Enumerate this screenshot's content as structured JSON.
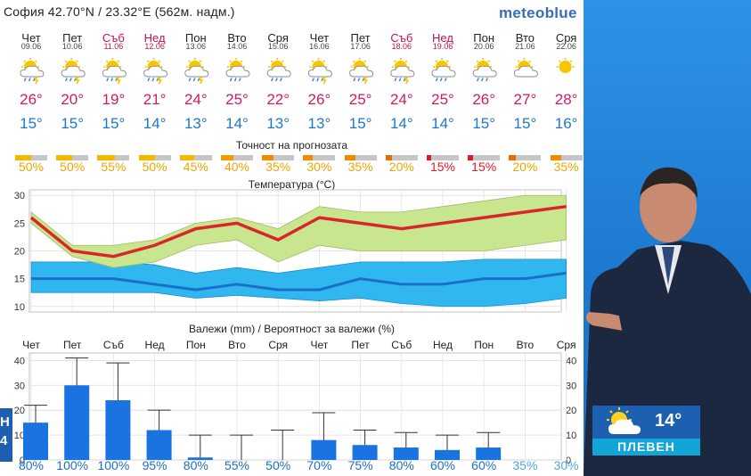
{
  "header": {
    "location": "София  42.70°N / 23.32°E (562м. надм.)",
    "brand": "meteoblue"
  },
  "days": [
    {
      "name": "Чет",
      "date": "09.06",
      "weekend": false,
      "icon": "sun-cloud-rain-storm-icon",
      "tmax": "26°",
      "tmin": "15°",
      "acc": "50%",
      "acc_color": "#f5b800",
      "precip_label": "Чет",
      "precip_prob": "80%"
    },
    {
      "name": "Пет",
      "date": "10.06",
      "weekend": false,
      "icon": "sun-cloud-rain-storm-icon",
      "tmax": "20°",
      "tmin": "15°",
      "acc": "50%",
      "acc_color": "#f5b800",
      "precip_label": "Пет",
      "precip_prob": "100%"
    },
    {
      "name": "Съб",
      "date": "11.06",
      "weekend": true,
      "icon": "sun-cloud-rain-storm-icon",
      "tmax": "19°",
      "tmin": "15°",
      "acc": "55%",
      "acc_color": "#f5b800",
      "precip_label": "Съб",
      "precip_prob": "100%"
    },
    {
      "name": "Нед",
      "date": "12.06",
      "weekend": true,
      "icon": "sun-cloud-rain-storm-icon",
      "tmax": "21°",
      "tmin": "14°",
      "acc": "50%",
      "acc_color": "#f5b800",
      "precip_label": "Нед",
      "precip_prob": "95%"
    },
    {
      "name": "Пон",
      "date": "13.06",
      "weekend": false,
      "icon": "sun-cloud-rain-storm-icon",
      "tmax": "24°",
      "tmin": "13°",
      "acc": "45%",
      "acc_color": "#f5b800",
      "precip_label": "Пон",
      "precip_prob": "80%"
    },
    {
      "name": "Вто",
      "date": "14.06",
      "weekend": false,
      "icon": "sun-cloud-rain-icon",
      "tmax": "25°",
      "tmin": "14°",
      "acc": "40%",
      "acc_color": "#f29b00",
      "precip_label": "Вто",
      "precip_prob": "55%"
    },
    {
      "name": "Сря",
      "date": "15.06",
      "weekend": false,
      "icon": "sun-cloud-rain-icon",
      "tmax": "22°",
      "tmin": "13°",
      "acc": "35%",
      "acc_color": "#f08a00",
      "precip_label": "Сря",
      "precip_prob": "50%"
    },
    {
      "name": "Чет",
      "date": "16.06",
      "weekend": false,
      "icon": "sun-cloud-rain-storm-icon",
      "tmax": "26°",
      "tmin": "13°",
      "acc": "30%",
      "acc_color": "#f08a00",
      "precip_label": "Чет",
      "precip_prob": "70%"
    },
    {
      "name": "Пет",
      "date": "17.06",
      "weekend": false,
      "icon": "sun-cloud-rain-storm-icon",
      "tmax": "25°",
      "tmin": "15°",
      "acc": "35%",
      "acc_color": "#f08a00",
      "precip_label": "Пет",
      "precip_prob": "75%"
    },
    {
      "name": "Съб",
      "date": "18.06",
      "weekend": true,
      "icon": "sun-cloud-rain-storm-icon",
      "tmax": "24°",
      "tmin": "14°",
      "acc": "20%",
      "acc_color": "#ee6a00",
      "precip_label": "Съб",
      "precip_prob": "80%"
    },
    {
      "name": "Нед",
      "date": "19.06",
      "weekend": true,
      "icon": "sun-cloud-rain-icon",
      "tmax": "25°",
      "tmin": "14°",
      "acc": "15%",
      "acc_color": "#e01b24",
      "precip_label": "Нед",
      "precip_prob": "60%"
    },
    {
      "name": "Пон",
      "date": "20.06",
      "weekend": false,
      "icon": "sun-cloud-rain-icon",
      "tmax": "26°",
      "tmin": "15°",
      "acc": "15%",
      "acc_color": "#e01b24",
      "precip_label": "Пон",
      "precip_prob": "60%"
    },
    {
      "name": "Вто",
      "date": "21.06",
      "weekend": false,
      "icon": "sun-cloud-icon",
      "tmax": "27°",
      "tmin": "15°",
      "acc": "20%",
      "acc_color": "#ee6a00",
      "precip_label": "Вто",
      "precip_prob": "35%"
    },
    {
      "name": "Сря",
      "date": "22.06",
      "weekend": false,
      "icon": "sun-icon",
      "tmax": "28°",
      "tmin": "16°",
      "acc": "35%",
      "acc_color": "#f08a00",
      "precip_label": "Сря",
      "precip_prob": "30%"
    }
  ],
  "sections": {
    "accuracy": "Точност на прогнозата",
    "temperature": "Температура (°C)",
    "precip": "Валежи (mm) / Вероятност за валежи (%)"
  },
  "chart_data": [
    {
      "type": "area",
      "title": "Температура (°C)",
      "ylim": [
        9,
        31
      ],
      "yticks": [
        10,
        15,
        20,
        25,
        30
      ],
      "series": [
        {
          "values": [
            26,
            20,
            19,
            21,
            24,
            25,
            22,
            26,
            25,
            24,
            25,
            26,
            27,
            28
          ]
        },
        {
          "values": [
            15,
            15,
            15,
            14,
            13,
            14,
            13,
            13,
            15,
            14,
            14,
            15,
            15,
            16
          ]
        }
      ],
      "max_band_low": [
        25,
        19,
        17,
        18,
        21,
        22,
        18,
        21,
        20,
        20,
        20,
        20,
        21,
        22
      ],
      "max_band_high": [
        27,
        21,
        21,
        22,
        25,
        26,
        24,
        28,
        27,
        27,
        28,
        29,
        30,
        30
      ],
      "min_band_low": [
        12.5,
        12.5,
        12.5,
        12.5,
        11.5,
        12,
        11.5,
        11,
        11.5,
        10.5,
        10,
        10,
        10.5,
        11.5
      ],
      "min_band_high": [
        18,
        18,
        18,
        17.5,
        16,
        17,
        16,
        17,
        18,
        18,
        18,
        18.5,
        18.5,
        18.5
      ]
    },
    {
      "type": "bar",
      "title": "Валежи (mm) / Вероятност за валежи (%)",
      "ylim": [
        0,
        43
      ],
      "yticks": [
        0,
        10,
        20,
        30,
        40
      ],
      "values": [
        15,
        30,
        24,
        12,
        1,
        0,
        0,
        8,
        6,
        5,
        4,
        5,
        0,
        0
      ],
      "err_high": [
        22,
        41,
        39,
        20,
        10,
        10,
        12,
        19,
        12,
        11,
        10,
        11,
        0,
        0
      ]
    }
  ],
  "badge": {
    "temp": "14°",
    "city": "ПЛЕВЕН",
    "icon": "sun-cloud-icon"
  },
  "edge": {
    "text": "Н\n4"
  }
}
